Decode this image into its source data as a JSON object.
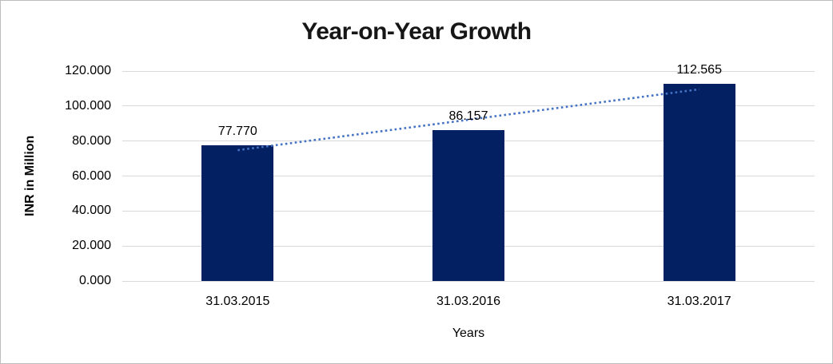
{
  "chart_data": {
    "type": "bar",
    "title": "Year-on-Year Growth",
    "xlabel": "Years",
    "ylabel": "INR in Million",
    "categories": [
      "31.03.2015",
      "31.03.2016",
      "31.03.2017"
    ],
    "values": [
      77.77,
      86.157,
      112.565
    ],
    "data_labels": [
      "77.770",
      "86.157",
      "112.565"
    ],
    "ylim": [
      0,
      120
    ],
    "yticks": [
      {
        "value": 0,
        "label": "0.000"
      },
      {
        "value": 20,
        "label": "20.000"
      },
      {
        "value": 40,
        "label": "40.000"
      },
      {
        "value": 60,
        "label": "60.000"
      },
      {
        "value": 80,
        "label": "80.000"
      },
      {
        "value": 100,
        "label": "100.000"
      },
      {
        "value": 120,
        "label": "120.000"
      }
    ],
    "grid": "horizontal",
    "legend": "none",
    "trendline": {
      "type": "linear",
      "style": "dotted"
    },
    "colors": {
      "bar": "#032062",
      "trendline": "#4472C4",
      "gridline": "#D9D9D9",
      "text": "#000000",
      "frame_border": "#BDBDBD",
      "background": "#FFFFFF"
    }
  }
}
